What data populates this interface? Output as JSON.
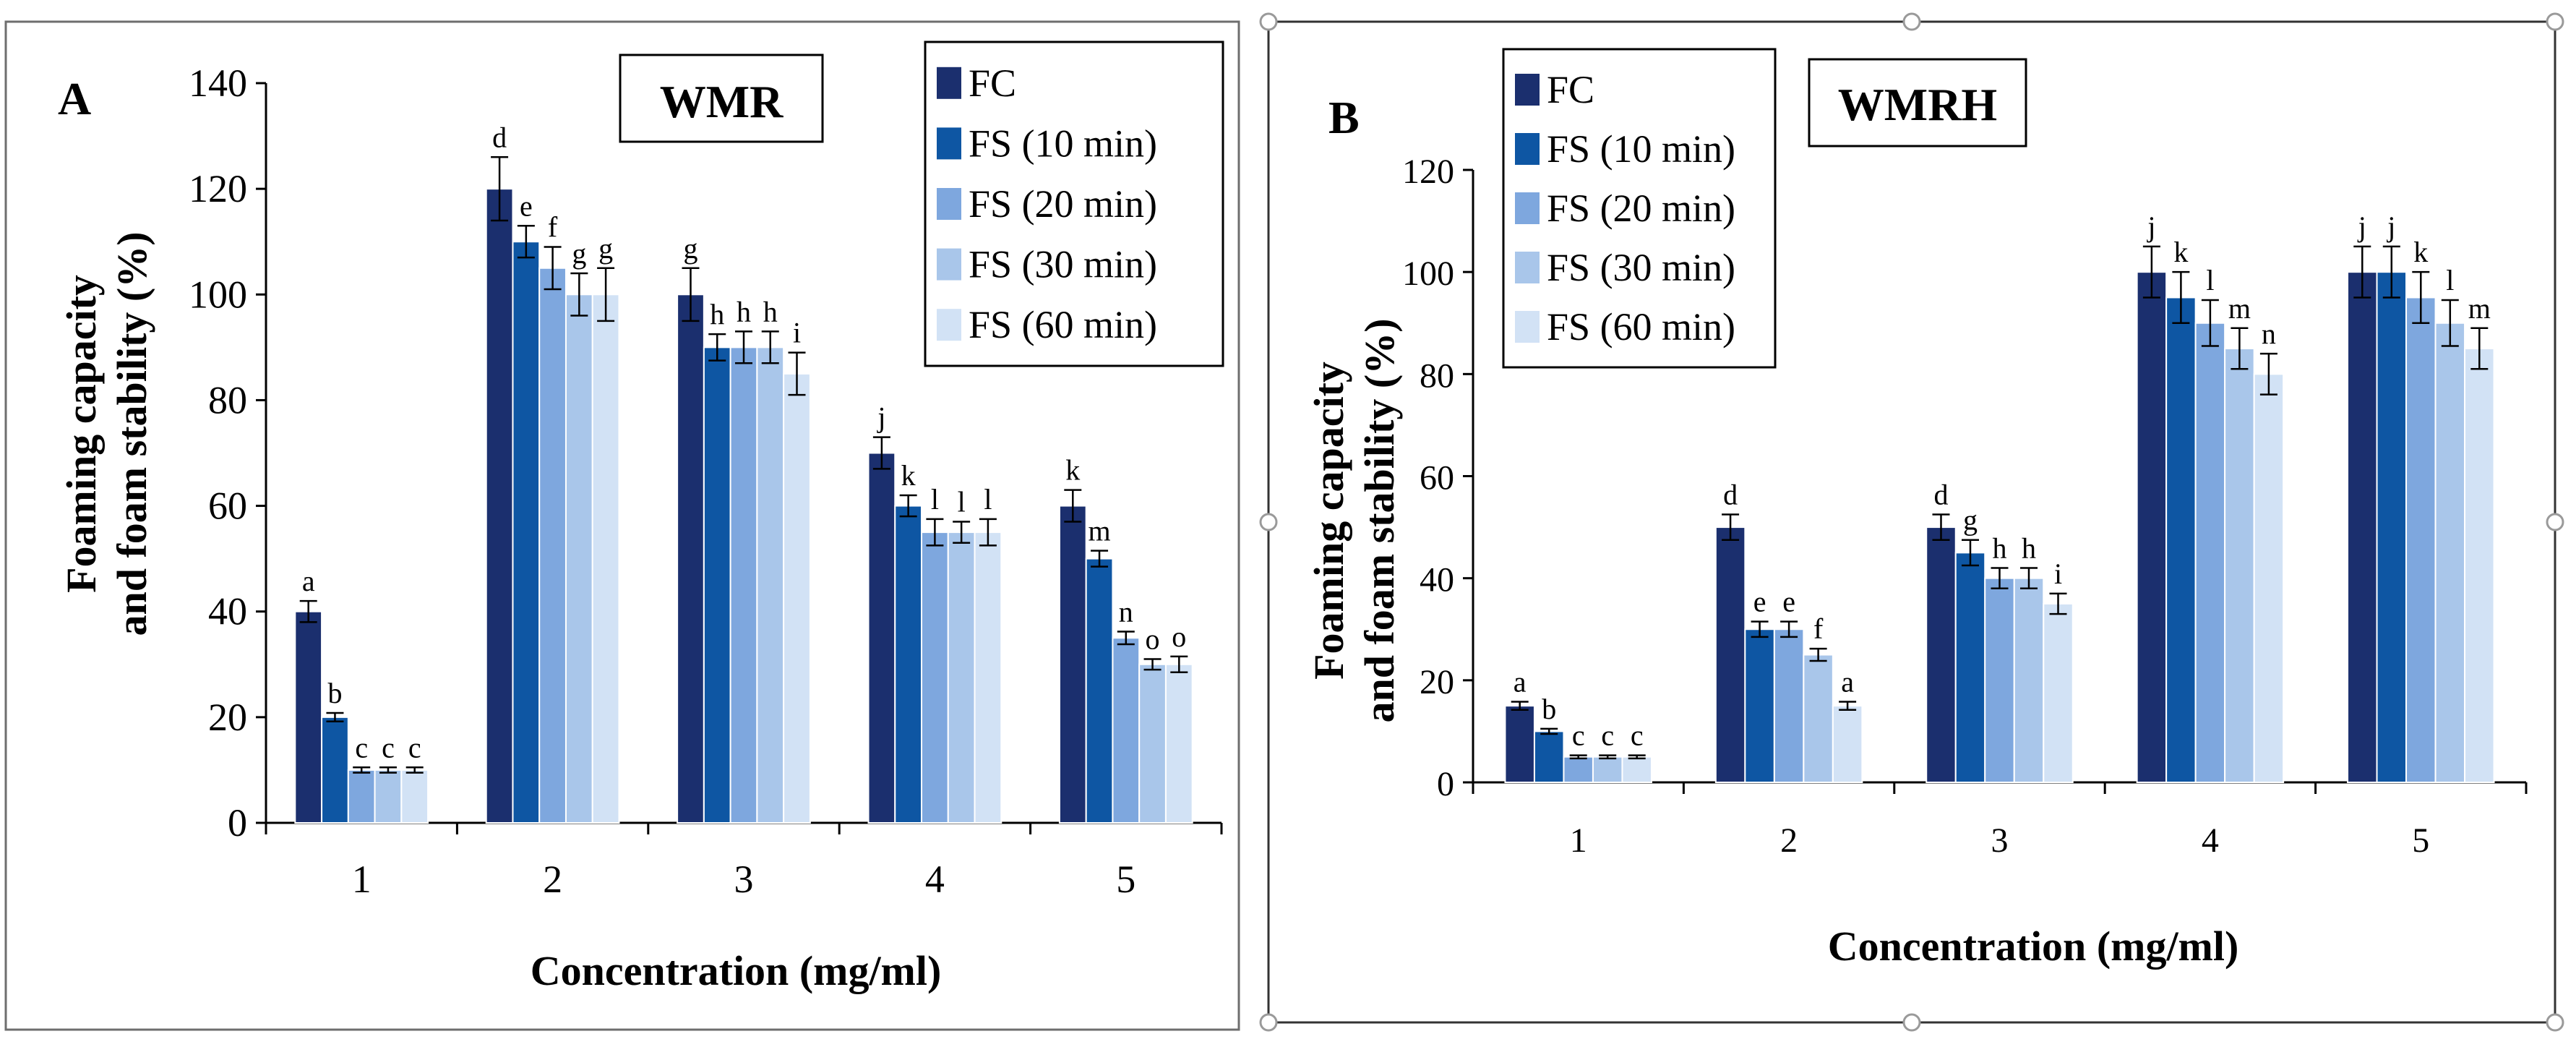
{
  "chart_data": [
    {
      "type": "bar",
      "panel_label": "A",
      "title": "WMR",
      "xlabel": "Concentration (mg/ml)",
      "ylabel": [
        "Foaming capacity",
        "and foam stability (%)"
      ],
      "ylim": [
        0,
        140
      ],
      "yticks": [
        "0",
        "20",
        "40",
        "60",
        "80",
        "100",
        "120",
        "140"
      ],
      "categories": [
        "1",
        "2",
        "3",
        "4",
        "5"
      ],
      "series": [
        {
          "name": "FC",
          "color": "#1b2f6e",
          "values": [
            40,
            120,
            100,
            70,
            60
          ],
          "errors": [
            2,
            6,
            5,
            3,
            3
          ],
          "letters": [
            "a",
            "d",
            "g",
            "j",
            "k"
          ]
        },
        {
          "name": "FS (10 min)",
          "color": "#0e56a3",
          "values": [
            20,
            110,
            90,
            60,
            50
          ],
          "errors": [
            0.8,
            3,
            2.5,
            2,
            1.5
          ],
          "letters": [
            "b",
            "e",
            "h",
            "k",
            "m"
          ]
        },
        {
          "name": "FS (20 min)",
          "color": "#7ea7de",
          "values": [
            10,
            105,
            90,
            55,
            35
          ],
          "errors": [
            0.5,
            4,
            3,
            2.5,
            1.2
          ],
          "letters": [
            "c",
            "f",
            "h",
            "l",
            "n"
          ]
        },
        {
          "name": "FS (30 min)",
          "color": "#a9c6ea",
          "values": [
            10,
            100,
            90,
            55,
            30
          ],
          "errors": [
            0.5,
            4,
            3,
            2,
            1
          ],
          "letters": [
            "c",
            "g",
            "h",
            "l",
            "o"
          ]
        },
        {
          "name": "FS (60 min)",
          "color": "#d2e2f5",
          "values": [
            10,
            100,
            85,
            55,
            30
          ],
          "errors": [
            0.5,
            5,
            4,
            2.5,
            1.5
          ],
          "letters": [
            "c",
            "g",
            "i",
            "l",
            "o"
          ]
        }
      ],
      "grid": false,
      "legend": "top-right"
    },
    {
      "type": "bar",
      "panel_label": "B",
      "title": "WMRH",
      "xlabel": "Concentration (mg/ml)",
      "ylabel": [
        "Foaming capacity",
        "and foam stability (%)"
      ],
      "ylim": [
        0,
        120
      ],
      "yticks": [
        "0",
        "20",
        "40",
        "60",
        "80",
        "100",
        "120"
      ],
      "categories": [
        "1",
        "2",
        "3",
        "4",
        "5"
      ],
      "series": [
        {
          "name": "FC",
          "color": "#1b2f6e",
          "values": [
            15,
            50,
            50,
            100,
            100
          ],
          "errors": [
            0.8,
            2.5,
            2.5,
            5,
            5
          ],
          "letters": [
            "a",
            "d",
            "d",
            "j",
            "j"
          ]
        },
        {
          "name": "FS (10 min)",
          "color": "#0e56a3",
          "values": [
            10,
            30,
            45,
            95,
            100
          ],
          "errors": [
            0.5,
            1.5,
            2.5,
            5,
            5
          ],
          "letters": [
            "b",
            "e",
            "g",
            "k",
            "j"
          ]
        },
        {
          "name": "FS (20 min)",
          "color": "#7ea7de",
          "values": [
            5,
            30,
            40,
            90,
            95
          ],
          "errors": [
            0.3,
            1.5,
            2,
            4.5,
            5
          ],
          "letters": [
            "c",
            "e",
            "h",
            "l",
            "k"
          ]
        },
        {
          "name": "FS (30 min)",
          "color": "#a9c6ea",
          "values": [
            5,
            25,
            40,
            85,
            90
          ],
          "errors": [
            0.3,
            1.2,
            2,
            4,
            4.5
          ],
          "letters": [
            "c",
            "f",
            "h",
            "m",
            "l"
          ]
        },
        {
          "name": "FS (60 min)",
          "color": "#d2e2f5",
          "values": [
            5,
            15,
            35,
            80,
            85
          ],
          "errors": [
            0.3,
            0.8,
            2,
            4,
            4
          ],
          "letters": [
            "c",
            "a",
            "i",
            "n",
            "m"
          ]
        }
      ],
      "grid": false,
      "legend": "top-left"
    }
  ]
}
